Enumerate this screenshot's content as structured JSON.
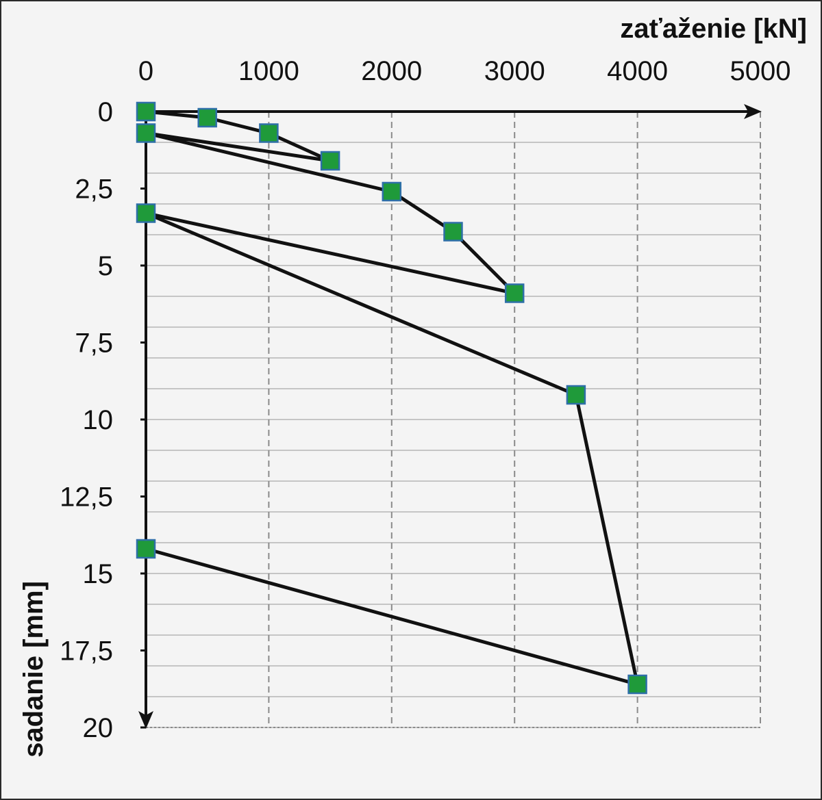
{
  "chart_data": {
    "type": "line",
    "xlabel": "zaťaženie  [kN]",
    "ylabel": "sadanie [mm]",
    "xlim": [
      0,
      5000
    ],
    "ylim": [
      0,
      20
    ],
    "y_inverted": true,
    "x_axis_position": "top",
    "x_ticks": [
      {
        "value": 0,
        "label": "0"
      },
      {
        "value": 1000,
        "label": "1000"
      },
      {
        "value": 2000,
        "label": "2000"
      },
      {
        "value": 3000,
        "label": "3000"
      },
      {
        "value": 4000,
        "label": "4000"
      },
      {
        "value": 5000,
        "label": "5000"
      }
    ],
    "y_ticks": [
      {
        "value": 0,
        "label": "0"
      },
      {
        "value": 2.5,
        "label": "2,5"
      },
      {
        "value": 5,
        "label": "5"
      },
      {
        "value": 7.5,
        "label": "7,5"
      },
      {
        "value": 10,
        "label": "10"
      },
      {
        "value": 12.5,
        "label": "12,5"
      },
      {
        "value": 15,
        "label": "15"
      },
      {
        "value": 17.5,
        "label": "17,5"
      },
      {
        "value": 20,
        "label": "20"
      }
    ],
    "y_minor_step": 1,
    "grid": {
      "vertical": "dashed",
      "horizontal": "solid"
    },
    "series": [
      {
        "marker": "square",
        "line_color": "#111111",
        "marker_color": "#1f9a3a",
        "marker_edge_color": "#2e6fa8",
        "points": [
          {
            "x": 0,
            "y": 0
          },
          {
            "x": 500,
            "y": 0.2
          },
          {
            "x": 1000,
            "y": 0.7
          },
          {
            "x": 1500,
            "y": 1.6
          },
          {
            "x": 0,
            "y": 0.7
          },
          {
            "x": 2000,
            "y": 2.6
          },
          {
            "x": 2500,
            "y": 3.9
          },
          {
            "x": 3000,
            "y": 5.9
          },
          {
            "x": 0,
            "y": 3.3
          },
          {
            "x": 3500,
            "y": 9.2
          },
          {
            "x": 4000,
            "y": 18.6
          },
          {
            "x": 0,
            "y": 14.2
          }
        ]
      }
    ]
  }
}
